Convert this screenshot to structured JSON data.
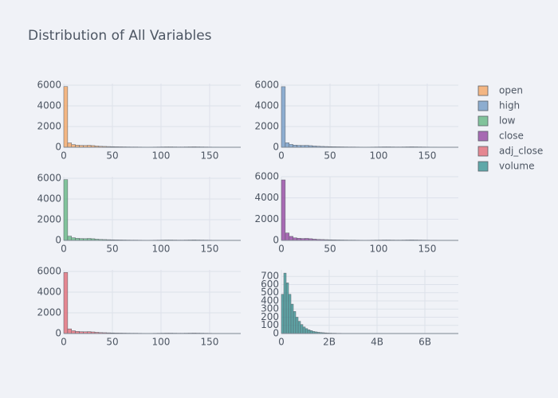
{
  "title": "Distribution of All Variables",
  "chart_data": [
    {
      "type": "histogram",
      "name": "open",
      "color": "#f4a25c",
      "grid": true,
      "bins": [
        0,
        4,
        8,
        12,
        16,
        20,
        24,
        28,
        32,
        36,
        40,
        44,
        48,
        52,
        56,
        60,
        64,
        68,
        72,
        76,
        80,
        84,
        88,
        92,
        96,
        100,
        104,
        108,
        112,
        116,
        120,
        124,
        128,
        132,
        136,
        140,
        144,
        148,
        152,
        156,
        160,
        164,
        168,
        172,
        176,
        180
      ],
      "counts": [
        5860,
        420,
        260,
        200,
        180,
        170,
        190,
        160,
        120,
        90,
        80,
        70,
        60,
        50,
        45,
        40,
        35,
        30,
        30,
        25,
        20,
        15,
        20,
        25,
        30,
        35,
        40,
        40,
        35,
        30,
        30,
        35,
        40,
        45,
        40,
        35,
        30,
        25,
        20,
        20,
        15,
        15,
        10,
        10,
        5
      ],
      "xlim": [
        0,
        182
      ],
      "ylim": [
        0,
        6150
      ],
      "xticks": [
        0,
        50,
        100,
        150
      ],
      "yticks": [
        0,
        2000,
        4000,
        6000
      ]
    },
    {
      "type": "histogram",
      "name": "high",
      "color": "#6c95c3",
      "grid": true,
      "bins": [
        0,
        4,
        8,
        12,
        16,
        20,
        24,
        28,
        32,
        36,
        40,
        44,
        48,
        52,
        56,
        60,
        64,
        68,
        72,
        76,
        80,
        84,
        88,
        92,
        96,
        100,
        104,
        108,
        112,
        116,
        120,
        124,
        128,
        132,
        136,
        140,
        144,
        148,
        152,
        156,
        160,
        164,
        168,
        172,
        176,
        180
      ],
      "counts": [
        5850,
        430,
        270,
        205,
        185,
        175,
        185,
        155,
        120,
        95,
        80,
        70,
        60,
        50,
        45,
        40,
        35,
        30,
        30,
        25,
        20,
        15,
        20,
        25,
        30,
        35,
        40,
        40,
        35,
        30,
        30,
        35,
        40,
        45,
        40,
        35,
        30,
        25,
        20,
        20,
        15,
        15,
        10,
        10,
        5
      ],
      "xlim": [
        0,
        182
      ],
      "ylim": [
        0,
        6150
      ],
      "xticks": [
        0,
        50,
        100,
        150
      ],
      "yticks": [
        0,
        2000,
        4000,
        6000
      ]
    },
    {
      "type": "histogram",
      "name": "low",
      "color": "#5cb37c",
      "grid": true,
      "bins": [
        0,
        4,
        8,
        12,
        16,
        20,
        24,
        28,
        32,
        36,
        40,
        44,
        48,
        52,
        56,
        60,
        64,
        68,
        72,
        76,
        80,
        84,
        88,
        92,
        96,
        100,
        104,
        108,
        112,
        116,
        120,
        124,
        128,
        132,
        136,
        140,
        144,
        148,
        152,
        156,
        160,
        164,
        168,
        172,
        176,
        180
      ],
      "counts": [
        5870,
        410,
        255,
        200,
        180,
        170,
        190,
        160,
        118,
        90,
        80,
        70,
        60,
        50,
        45,
        40,
        35,
        30,
        30,
        25,
        20,
        15,
        20,
        25,
        30,
        35,
        40,
        40,
        35,
        30,
        30,
        35,
        40,
        45,
        40,
        35,
        30,
        25,
        20,
        20,
        15,
        15,
        10,
        10,
        5
      ],
      "xlim": [
        0,
        182
      ],
      "ylim": [
        0,
        6150
      ],
      "xticks": [
        0,
        50,
        100,
        150
      ],
      "yticks": [
        0,
        2000,
        4000,
        6000
      ]
    },
    {
      "type": "histogram",
      "name": "close",
      "color": "#8f3c9c",
      "grid": true,
      "bins": [
        0,
        4,
        8,
        12,
        16,
        20,
        24,
        28,
        32,
        36,
        40,
        44,
        48,
        52,
        56,
        60,
        64,
        68,
        72,
        76,
        80,
        84,
        88,
        92,
        96,
        100,
        104,
        108,
        112,
        116,
        120,
        124,
        128,
        132,
        136,
        140,
        144,
        148,
        152,
        156,
        160,
        164,
        168,
        172,
        176,
        180
      ],
      "counts": [
        5700,
        700,
        380,
        240,
        200,
        180,
        190,
        160,
        120,
        90,
        80,
        70,
        60,
        50,
        45,
        40,
        35,
        30,
        30,
        25,
        20,
        15,
        20,
        25,
        30,
        35,
        40,
        40,
        35,
        30,
        30,
        35,
        40,
        45,
        40,
        35,
        30,
        25,
        20,
        20,
        15,
        15,
        10,
        10,
        5
      ],
      "xlim": [
        0,
        182
      ],
      "ylim": [
        0,
        6000
      ],
      "xticks": [
        0,
        50,
        100,
        150
      ],
      "yticks": [
        0,
        2000,
        4000,
        6000
      ]
    },
    {
      "type": "histogram",
      "name": "adj_close",
      "color": "#e2636f",
      "grid": true,
      "bins": [
        0,
        4,
        8,
        12,
        16,
        20,
        24,
        28,
        32,
        36,
        40,
        44,
        48,
        52,
        56,
        60,
        64,
        68,
        72,
        76,
        80,
        84,
        88,
        92,
        96,
        100,
        104,
        108,
        112,
        116,
        120,
        124,
        128,
        132,
        136,
        140,
        144,
        148,
        152,
        156,
        160,
        164,
        168,
        172,
        176,
        180
      ],
      "counts": [
        5900,
        450,
        270,
        205,
        180,
        170,
        185,
        155,
        118,
        90,
        80,
        70,
        60,
        50,
        45,
        40,
        35,
        30,
        30,
        25,
        20,
        15,
        20,
        25,
        30,
        35,
        40,
        40,
        35,
        30,
        30,
        35,
        40,
        45,
        40,
        35,
        30,
        25,
        20,
        20,
        15,
        15,
        10,
        10,
        5
      ],
      "xlim": [
        0,
        182
      ],
      "ylim": [
        0,
        6150
      ],
      "xticks": [
        0,
        50,
        100,
        150
      ],
      "yticks": [
        0,
        2000,
        4000,
        6000
      ]
    },
    {
      "type": "histogram",
      "name": "volume",
      "color": "#2f8f8f",
      "grid": true,
      "bins": [
        0,
        100000000,
        200000000,
        300000000,
        400000000,
        500000000,
        600000000,
        700000000,
        800000000,
        900000000,
        1000000000,
        1100000000,
        1200000000,
        1300000000,
        1400000000,
        1500000000,
        1600000000,
        1700000000,
        1800000000,
        1900000000,
        2000000000,
        2100000000,
        2200000000,
        2300000000,
        2400000000,
        2500000000,
        2600000000,
        2700000000,
        2800000000,
        2900000000,
        3000000000
      ],
      "counts": [
        480,
        740,
        620,
        480,
        360,
        270,
        200,
        150,
        110,
        80,
        60,
        45,
        35,
        25,
        20,
        15,
        12,
        10,
        8,
        6,
        5,
        4,
        4,
        3,
        3,
        2,
        2,
        2,
        1,
        1
      ],
      "xlim": [
        0,
        7400000000
      ],
      "ylim": [
        0,
        780
      ],
      "xticks": [
        0,
        {
          "value": 2000000000,
          "label": "2B"
        },
        {
          "value": 4000000000,
          "label": "4B"
        },
        {
          "value": 6000000000,
          "label": "6B"
        }
      ],
      "yticks": [
        0,
        100,
        200,
        300,
        400,
        500,
        600,
        700
      ]
    }
  ]
}
